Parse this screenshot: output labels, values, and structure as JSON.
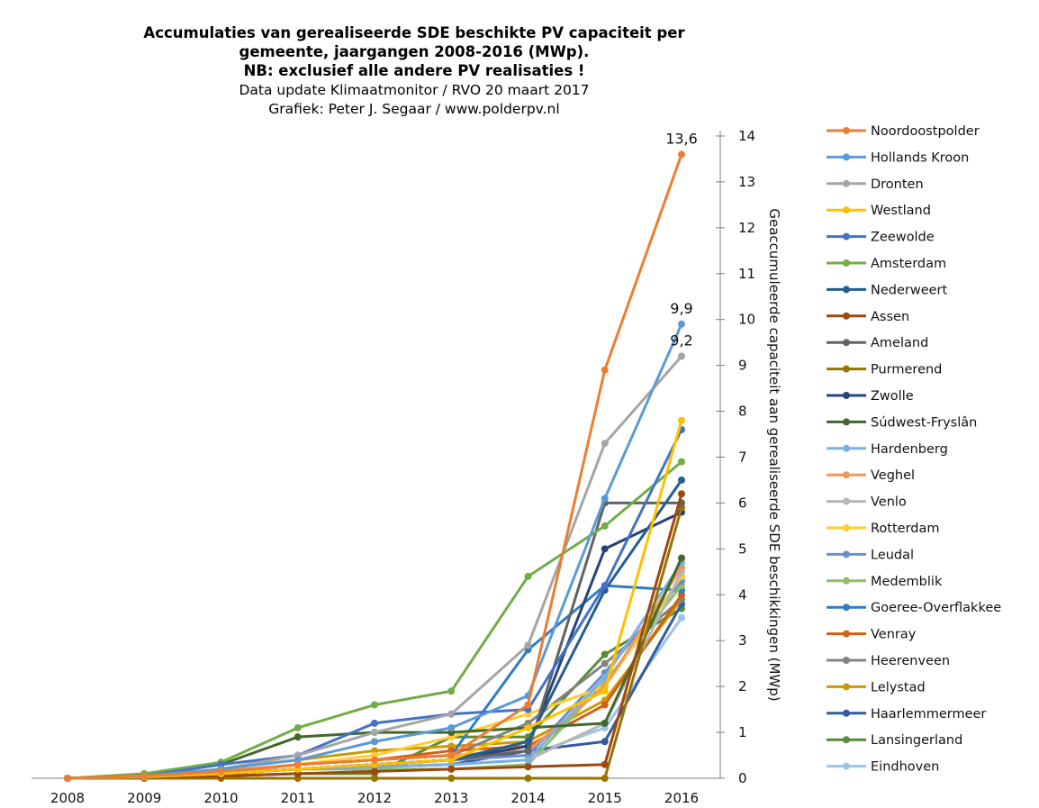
{
  "chart_data": {
    "type": "line",
    "title": [
      "Accumulaties van gerealiseerde SDE beschikte PV capaciteit per",
      "gemeente, jaargangen 2008-2016 (MWp).",
      "NB: exclusief alle andere PV realisaties !"
    ],
    "subtitle": [
      "Data update Klimaatmonitor  / RVO 20 maart 2017",
      "Grafiek:  Peter J. Segaar / www.polderpv.nl"
    ],
    "xlabel": "",
    "ylabel": "Geaccumuleerde  capaciteit aan gerealiseerde  SDE beschikkingen  (MWp)",
    "y_axis_position": "right",
    "ylim": [
      0,
      14
    ],
    "yticks": [
      "0",
      "1",
      "2",
      "3",
      "4",
      "5",
      "6",
      "7",
      "8",
      "9",
      "10",
      "11",
      "12",
      "13",
      "14"
    ],
    "categories": [
      "2008",
      "2009",
      "2010",
      "2011",
      "2012",
      "2013",
      "2014",
      "2015",
      "2016"
    ],
    "grid": false,
    "legend_position": "right",
    "series": [
      {
        "name": "Noordoostpolder",
        "color": "#ED7D31",
        "values": [
          0,
          0.05,
          0.15,
          0.3,
          0.4,
          0.5,
          1.6,
          8.9,
          13.6
        ],
        "end_label": "13,6"
      },
      {
        "name": "Hollands Kroon",
        "color": "#5B9BD5",
        "values": [
          0,
          0.05,
          0.2,
          0.4,
          0.8,
          1.1,
          1.8,
          6.1,
          9.9
        ],
        "end_label": "9,9"
      },
      {
        "name": "Dronten",
        "color": "#A5A5A5",
        "values": [
          0,
          0.05,
          0.2,
          0.5,
          1.0,
          1.4,
          2.9,
          7.3,
          9.2
        ],
        "end_label": "9,2"
      },
      {
        "name": "Westland",
        "color": "#FFC000",
        "values": [
          0,
          0.03,
          0.1,
          0.2,
          0.3,
          0.4,
          1.1,
          1.9,
          7.8
        ]
      },
      {
        "name": "Zeewolde",
        "color": "#4472C4",
        "values": [
          0,
          0.05,
          0.3,
          0.5,
          1.2,
          1.4,
          1.5,
          4.2,
          7.6
        ]
      },
      {
        "name": "Amsterdam",
        "color": "#70AD47",
        "values": [
          0,
          0.1,
          0.35,
          1.1,
          1.6,
          1.9,
          4.4,
          5.5,
          6.9
        ]
      },
      {
        "name": "Nederweert",
        "color": "#255E91",
        "values": [
          0,
          0.03,
          0.1,
          0.2,
          0.3,
          0.4,
          0.8,
          4.1,
          6.5
        ]
      },
      {
        "name": "Assen",
        "color": "#9E480E",
        "values": [
          0,
          0.02,
          0.05,
          0.1,
          0.15,
          0.2,
          0.25,
          0.3,
          6.2
        ]
      },
      {
        "name": "Ameland",
        "color": "#636363",
        "values": [
          0,
          0.02,
          0.1,
          0.2,
          0.3,
          0.4,
          0.6,
          6.0,
          6.0
        ]
      },
      {
        "name": "Purmerend",
        "color": "#997300",
        "values": [
          0,
          0,
          0,
          0,
          0,
          0,
          0,
          0,
          5.9
        ]
      },
      {
        "name": "Zwolle",
        "color": "#264478",
        "values": [
          0,
          0.02,
          0.1,
          0.2,
          0.3,
          0.4,
          0.7,
          5.0,
          5.8
        ]
      },
      {
        "name": "Súdwest-Fryslân",
        "color": "#43682B",
        "values": [
          0,
          0.05,
          0.3,
          0.9,
          1.0,
          1.0,
          1.1,
          1.2,
          4.8
        ]
      },
      {
        "name": "Hardenberg",
        "color": "#7CAFDD",
        "values": [
          0,
          0.02,
          0.1,
          0.2,
          0.25,
          0.3,
          0.4,
          2.2,
          4.7
        ]
      },
      {
        "name": "Veghel",
        "color": "#F1975A",
        "values": [
          0,
          0.03,
          0.1,
          0.3,
          0.4,
          0.5,
          0.6,
          2.0,
          4.6
        ]
      },
      {
        "name": "Venlo",
        "color": "#B7B7B7",
        "values": [
          0,
          0.02,
          0.1,
          0.2,
          0.25,
          0.3,
          0.4,
          1.2,
          4.5
        ]
      },
      {
        "name": "Rotterdam",
        "color": "#FFCD33",
        "values": [
          0,
          0.02,
          0.1,
          0.3,
          0.5,
          0.9,
          1.4,
          2.0,
          4.4
        ]
      },
      {
        "name": "Leudal",
        "color": "#698ED0",
        "values": [
          0,
          0.02,
          0.1,
          0.2,
          0.3,
          0.4,
          0.5,
          2.3,
          4.3
        ]
      },
      {
        "name": "Medemblik",
        "color": "#8CC168",
        "values": [
          0,
          0.02,
          0.1,
          0.2,
          0.2,
          0.2,
          0.3,
          2.1,
          4.2
        ]
      },
      {
        "name": "Goeree-Overflakkee",
        "color": "#327DC2",
        "values": [
          0,
          0.02,
          0.1,
          0.3,
          0.4,
          0.5,
          2.8,
          4.2,
          4.1
        ]
      },
      {
        "name": "Venray",
        "color": "#D26012",
        "values": [
          0,
          0.02,
          0.1,
          0.3,
          0.4,
          0.6,
          0.7,
          1.6,
          4.0
        ]
      },
      {
        "name": "Heerenveen",
        "color": "#848484",
        "values": [
          0,
          0.02,
          0.1,
          0.3,
          0.4,
          0.5,
          1.2,
          2.5,
          3.9
        ]
      },
      {
        "name": "Lelystad",
        "color": "#CC9A00",
        "values": [
          0,
          0.03,
          0.2,
          0.4,
          0.6,
          0.7,
          0.8,
          1.7,
          3.9
        ]
      },
      {
        "name": "Haarlemmermeer",
        "color": "#335AA1",
        "values": [
          0,
          0.02,
          0.1,
          0.2,
          0.25,
          0.3,
          0.6,
          0.8,
          3.8
        ]
      },
      {
        "name": "Lansingerland",
        "color": "#5A8B39",
        "values": [
          0,
          0.02,
          0.05,
          0.1,
          0.1,
          0.9,
          0.9,
          2.7,
          3.7
        ]
      },
      {
        "name": "Eindhoven",
        "color": "#9DC3E6",
        "values": [
          0,
          0.02,
          0.1,
          0.2,
          0.3,
          0.4,
          0.5,
          1.1,
          3.5
        ]
      }
    ]
  }
}
